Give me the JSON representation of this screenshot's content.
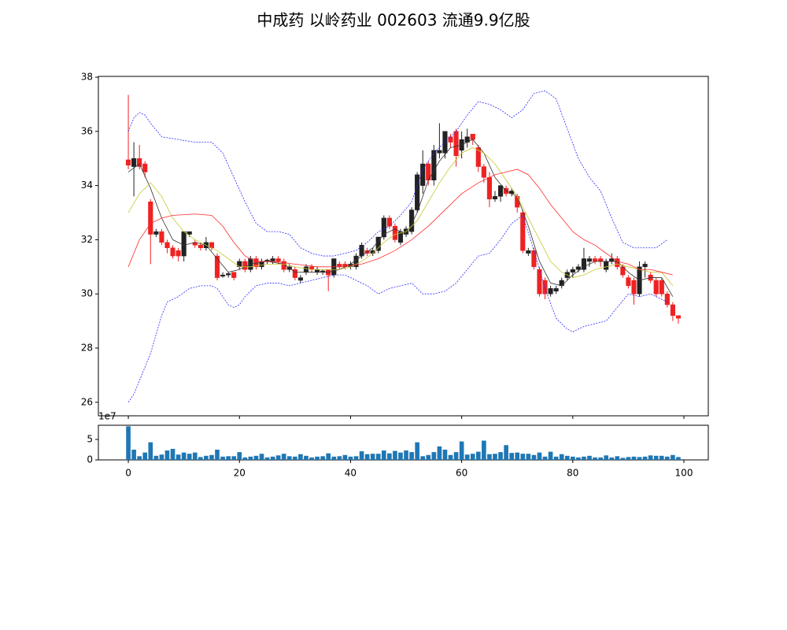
{
  "chart_data": {
    "type": "candlestick",
    "title": "中成药 以岭药业 002603 流通9.9亿股",
    "x": [
      0,
      1,
      2,
      3,
      4,
      5,
      6,
      7,
      8,
      9,
      10,
      11,
      12,
      13,
      14,
      15,
      16,
      17,
      18,
      19,
      20,
      21,
      22,
      23,
      24,
      25,
      26,
      27,
      28,
      29,
      30,
      31,
      32,
      33,
      34,
      35,
      36,
      37,
      38,
      39,
      40,
      41,
      42,
      43,
      44,
      45,
      46,
      47,
      48,
      49,
      50,
      51,
      52,
      53,
      54,
      55,
      56,
      57,
      58,
      59,
      60,
      61,
      62,
      63,
      64,
      65,
      66,
      67,
      68,
      69,
      70,
      71,
      72,
      73,
      74,
      75,
      76,
      77,
      78,
      79,
      80,
      81,
      82,
      83,
      84,
      85,
      86,
      87,
      88,
      89,
      90,
      91,
      92,
      93,
      94,
      95,
      96,
      97,
      98,
      99
    ],
    "open": [
      34.95,
      34.7,
      35.0,
      34.8,
      33.4,
      32.2,
      32.3,
      31.9,
      31.7,
      31.6,
      31.4,
      32.2,
      31.9,
      31.8,
      31.7,
      31.9,
      31.4,
      30.65,
      30.7,
      30.8,
      31.0,
      31.2,
      30.9,
      31.3,
      31.0,
      31.2,
      31.2,
      31.3,
      31.2,
      30.9,
      30.9,
      30.5,
      30.8,
      31.0,
      30.8,
      30.8,
      30.9,
      30.7,
      31.1,
      31.1,
      31.0,
      31.0,
      31.4,
      31.6,
      31.5,
      31.6,
      32.1,
      32.8,
      32.5,
      31.9,
      32.2,
      32.3,
      33.1,
      34.0,
      34.8,
      34.2,
      35.2,
      35.2,
      35.8,
      36.0,
      35.3,
      35.6,
      35.9,
      35.4,
      34.7,
      34.3,
      33.5,
      33.6,
      33.9,
      33.7,
      33.6,
      33.0,
      31.5,
      31.6,
      30.9,
      30.5,
      30.0,
      30.1,
      30.3,
      30.6,
      30.8,
      30.9,
      30.9,
      31.2,
      31.3,
      31.3,
      30.9,
      31.2,
      31.3,
      31.0,
      30.6,
      30.5,
      30.0,
      31.0,
      30.7,
      30.5,
      30.5,
      30.0,
      29.6,
      29.2
    ],
    "high": [
      37.35,
      35.6,
      35.5,
      34.9,
      33.5,
      32.4,
      32.4,
      32.0,
      31.8,
      31.7,
      32.3,
      32.3,
      32.0,
      31.9,
      32.1,
      31.9,
      31.5,
      30.8,
      30.8,
      30.8,
      31.3,
      31.3,
      31.4,
      31.4,
      31.3,
      31.3,
      31.4,
      31.4,
      31.3,
      31.1,
      31.0,
      30.7,
      31.1,
      31.1,
      31.0,
      30.9,
      30.9,
      31.3,
      31.2,
      31.2,
      31.2,
      31.5,
      31.9,
      31.7,
      31.7,
      32.1,
      32.9,
      32.9,
      32.6,
      32.4,
      32.5,
      33.2,
      34.5,
      35.3,
      34.9,
      35.5,
      36.3,
      36.0,
      35.9,
      36.1,
      36.0,
      36.1,
      35.9,
      35.5,
      34.8,
      34.5,
      33.8,
      34.0,
      34.0,
      33.9,
      33.7,
      33.1,
      31.7,
      31.7,
      31.0,
      30.6,
      30.3,
      30.3,
      30.6,
      30.9,
      31.0,
      31.1,
      31.7,
      31.4,
      31.4,
      31.4,
      31.3,
      31.5,
      31.4,
      31.1,
      30.7,
      30.6,
      31.2,
      31.2,
      30.8,
      30.6,
      30.6,
      30.1,
      29.7,
      29.2
    ],
    "low": [
      34.6,
      33.6,
      34.6,
      34.3,
      31.1,
      32.1,
      31.8,
      31.5,
      31.3,
      31.2,
      31.2,
      32.1,
      31.7,
      31.6,
      31.6,
      31.6,
      30.5,
      30.6,
      30.6,
      30.5,
      30.9,
      30.8,
      30.8,
      30.9,
      30.9,
      31.1,
      31.1,
      31.1,
      30.8,
      30.8,
      30.5,
      30.4,
      30.7,
      30.8,
      30.7,
      30.7,
      30.1,
      30.6,
      30.9,
      30.9,
      30.9,
      30.9,
      31.3,
      31.4,
      31.4,
      31.5,
      32.0,
      32.4,
      31.9,
      31.8,
      32.1,
      32.2,
      33.0,
      33.7,
      34.0,
      34.0,
      35.0,
      35.0,
      35.4,
      34.7,
      35.0,
      35.4,
      35.5,
      34.5,
      34.1,
      33.2,
      33.4,
      33.4,
      33.6,
      33.6,
      33.0,
      31.5,
      31.4,
      30.9,
      29.9,
      29.8,
      29.9,
      30.0,
      30.2,
      30.5,
      30.6,
      30.8,
      30.8,
      31.0,
      31.1,
      31.0,
      30.8,
      31.1,
      30.9,
      30.6,
      30.2,
      29.6,
      29.9,
      30.6,
      30.4,
      29.9,
      29.9,
      29.5,
      29.0,
      28.9
    ],
    "close": [
      34.75,
      35.0,
      34.7,
      34.5,
      32.2,
      32.3,
      31.9,
      31.7,
      31.4,
      31.4,
      32.3,
      32.3,
      31.8,
      31.7,
      31.9,
      31.7,
      30.6,
      30.7,
      30.75,
      30.6,
      31.2,
      30.9,
      31.3,
      31.0,
      31.2,
      31.25,
      31.3,
      31.2,
      30.9,
      31.0,
      30.6,
      30.6,
      31.0,
      30.9,
      30.9,
      30.85,
      30.7,
      31.3,
      31.0,
      31.0,
      31.1,
      31.4,
      31.8,
      31.5,
      31.6,
      32.1,
      32.8,
      32.5,
      32.0,
      32.3,
      32.4,
      33.1,
      34.4,
      34.8,
      34.2,
      35.3,
      35.3,
      36.0,
      35.6,
      35.1,
      35.7,
      35.8,
      35.7,
      34.7,
      34.3,
      33.5,
      33.6,
      34.0,
      33.7,
      33.8,
      33.2,
      31.6,
      31.6,
      31.0,
      30.0,
      30.0,
      30.2,
      30.2,
      30.5,
      30.8,
      30.9,
      31.0,
      31.3,
      31.3,
      31.2,
      31.2,
      31.2,
      31.3,
      31.0,
      30.7,
      30.3,
      30.0,
      31.0,
      31.1,
      30.5,
      30.0,
      30.0,
      29.6,
      29.2,
      29.1
    ],
    "up_color": "#222222",
    "down_color": "#ee2222",
    "lines": [
      {
        "color": "#333333",
        "style": "solid",
        "x": [
          0,
          2,
          4,
          6,
          8,
          10,
          12,
          14,
          16,
          18,
          20,
          22,
          25,
          28,
          30,
          33,
          36,
          38,
          40,
          42,
          44,
          46,
          48,
          50,
          52,
          54,
          56,
          58,
          60,
          62,
          64,
          66,
          68,
          70,
          72,
          74,
          76,
          78,
          80,
          82,
          84,
          86,
          88,
          90,
          92,
          94,
          96,
          98
        ],
        "values": [
          34.5,
          34.8,
          33.9,
          32.8,
          32.0,
          31.8,
          31.9,
          31.8,
          31.3,
          30.8,
          30.9,
          31.1,
          31.2,
          31.1,
          30.8,
          30.8,
          30.8,
          30.9,
          31.1,
          31.4,
          31.7,
          32.2,
          32.4,
          32.2,
          33.0,
          34.2,
          34.9,
          35.4,
          35.5,
          35.7,
          35.2,
          34.3,
          33.8,
          33.6,
          32.5,
          31.2,
          30.4,
          30.3,
          30.7,
          31.0,
          31.2,
          31.2,
          31.2,
          30.8,
          30.5,
          30.6,
          30.6,
          29.9
        ]
      },
      {
        "color": "#c8c832",
        "style": "solid",
        "x": [
          0,
          2,
          4,
          6,
          8,
          10,
          12,
          14,
          16,
          18,
          20,
          22,
          25,
          28,
          30,
          33,
          36,
          38,
          40,
          42,
          44,
          46,
          48,
          50,
          52,
          54,
          56,
          58,
          60,
          62,
          64,
          66,
          68,
          70,
          72,
          74,
          76,
          78,
          80,
          82,
          84,
          86,
          88,
          90,
          92,
          94,
          96,
          98
        ],
        "values": [
          33.0,
          33.7,
          34.1,
          33.6,
          32.8,
          32.3,
          32.0,
          31.8,
          31.6,
          31.3,
          31.0,
          31.0,
          31.1,
          31.1,
          31.0,
          30.9,
          30.9,
          30.9,
          31.0,
          31.2,
          31.5,
          31.9,
          32.2,
          32.3,
          32.7,
          33.4,
          34.1,
          34.7,
          35.2,
          35.4,
          35.2,
          34.8,
          34.2,
          33.6,
          32.8,
          32.0,
          31.2,
          30.8,
          30.6,
          30.7,
          30.9,
          31.0,
          31.1,
          31.0,
          30.9,
          30.8,
          30.8,
          30.3
        ]
      },
      {
        "color": "#ff2a2a",
        "style": "solid",
        "x": [
          0,
          2,
          4,
          6,
          8,
          12,
          15,
          17,
          19,
          21,
          23,
          26,
          30,
          34,
          38,
          42,
          45,
          48,
          51,
          54,
          57,
          60,
          63,
          66,
          70,
          72,
          74,
          76,
          78,
          80,
          82,
          84,
          86,
          88,
          90,
          92,
          94,
          96,
          98
        ],
        "values": [
          31.0,
          32.0,
          32.6,
          32.8,
          32.9,
          32.95,
          32.9,
          32.5,
          31.9,
          31.4,
          31.2,
          31.2,
          31.1,
          31.0,
          31.0,
          31.1,
          31.3,
          31.6,
          32.0,
          32.5,
          33.1,
          33.7,
          34.1,
          34.4,
          34.6,
          34.4,
          33.9,
          33.3,
          32.8,
          32.3,
          32.0,
          31.8,
          31.5,
          31.2,
          31.1,
          30.9,
          30.9,
          30.8,
          30.7
        ]
      },
      {
        "color": "#2a2aff",
        "style": "dotted",
        "x": [
          0,
          1,
          2,
          3,
          4,
          6,
          9,
          12,
          15,
          17,
          19,
          21,
          23,
          25,
          27,
          29,
          31,
          33,
          35,
          37,
          39,
          41,
          43,
          45,
          47,
          49,
          51,
          53,
          55,
          57,
          59,
          61,
          63,
          65,
          67,
          69,
          71,
          73,
          75,
          77,
          79,
          81,
          83,
          85,
          87,
          89,
          91,
          93,
          95,
          97
        ],
        "values": [
          36.0,
          36.5,
          36.7,
          36.6,
          36.3,
          35.8,
          35.7,
          35.6,
          35.6,
          35.2,
          34.3,
          33.4,
          32.6,
          32.3,
          32.3,
          32.2,
          31.7,
          31.5,
          31.4,
          31.4,
          31.5,
          31.6,
          31.9,
          32.3,
          32.5,
          32.9,
          33.4,
          34.6,
          35.2,
          35.6,
          36.0,
          36.6,
          37.1,
          37.0,
          36.8,
          36.5,
          36.8,
          37.4,
          37.5,
          37.2,
          36.1,
          35.0,
          34.3,
          33.8,
          32.8,
          31.9,
          31.7,
          31.7,
          31.7,
          32.0
        ]
      },
      {
        "color": "#2a2aff",
        "style": "dotted",
        "x": [
          0,
          1,
          2,
          4,
          5,
          6,
          7,
          9,
          11,
          13,
          15,
          16,
          17,
          18,
          19,
          20,
          21,
          23,
          25,
          27,
          29,
          31,
          33,
          35,
          37,
          39,
          41,
          43,
          45,
          47,
          49,
          51,
          53,
          55,
          57,
          59,
          61,
          63,
          65,
          67,
          69,
          71,
          73,
          75,
          77,
          79,
          80,
          82,
          84,
          86,
          88,
          90,
          92,
          94,
          97
        ],
        "values": [
          26.0,
          26.3,
          26.8,
          27.8,
          28.5,
          29.2,
          29.7,
          29.9,
          30.2,
          30.3,
          30.3,
          30.2,
          29.9,
          29.6,
          29.5,
          29.6,
          29.9,
          30.3,
          30.4,
          30.4,
          30.3,
          30.4,
          30.5,
          30.6,
          30.7,
          30.7,
          30.5,
          30.3,
          30.0,
          30.2,
          30.3,
          30.4,
          30.0,
          30.0,
          30.1,
          30.4,
          30.9,
          31.4,
          31.5,
          32.0,
          32.6,
          32.9,
          31.6,
          30.2,
          29.1,
          28.7,
          28.6,
          28.8,
          28.9,
          29.0,
          29.5,
          30.0,
          29.9,
          30.0,
          29.7
        ]
      }
    ],
    "xlim": [
      -5.39,
      104.39
    ],
    "xticks": [
      0,
      20,
      40,
      60,
      80,
      100
    ],
    "ylim": [
      25.5,
      38.03
    ],
    "yticks": [
      26,
      28,
      30,
      32,
      34,
      36,
      38
    ],
    "volume": {
      "color": "#1f77b4",
      "offset_label": "1e7",
      "ylim": [
        0,
        84600000
      ],
      "yticks": [
        0,
        {
          "value": 50000000,
          "label": "5"
        }
      ],
      "values": [
        82000000,
        25000000,
        9000000,
        18000000,
        43000000,
        10000000,
        13000000,
        23000000,
        27000000,
        13000000,
        18000000,
        15000000,
        18000000,
        7000000,
        10000000,
        12000000,
        25000000,
        8000000,
        9000000,
        9000000,
        19000000,
        6000000,
        8000000,
        10000000,
        15000000,
        6000000,
        8000000,
        11000000,
        15000000,
        9000000,
        8000000,
        14000000,
        10000000,
        6000000,
        8000000,
        9000000,
        16000000,
        8000000,
        9000000,
        12000000,
        8000000,
        9000000,
        21000000,
        14000000,
        15000000,
        15000000,
        23000000,
        16000000,
        22000000,
        18000000,
        23000000,
        19000000,
        43000000,
        9000000,
        12000000,
        19000000,
        33000000,
        25000000,
        12000000,
        19000000,
        45000000,
        13000000,
        15000000,
        20000000,
        47000000,
        14000000,
        15000000,
        19000000,
        36000000,
        17000000,
        18000000,
        15000000,
        15000000,
        12000000,
        18000000,
        8000000,
        20000000,
        8000000,
        14000000,
        10000000,
        8000000,
        6000000,
        8000000,
        10000000,
        6000000,
        6000000,
        11000000,
        6000000,
        9000000,
        5000000,
        7000000,
        8000000,
        7000000,
        8000000,
        11000000,
        10000000,
        10000000,
        8000000,
        12000000,
        7000000
      ]
    }
  }
}
